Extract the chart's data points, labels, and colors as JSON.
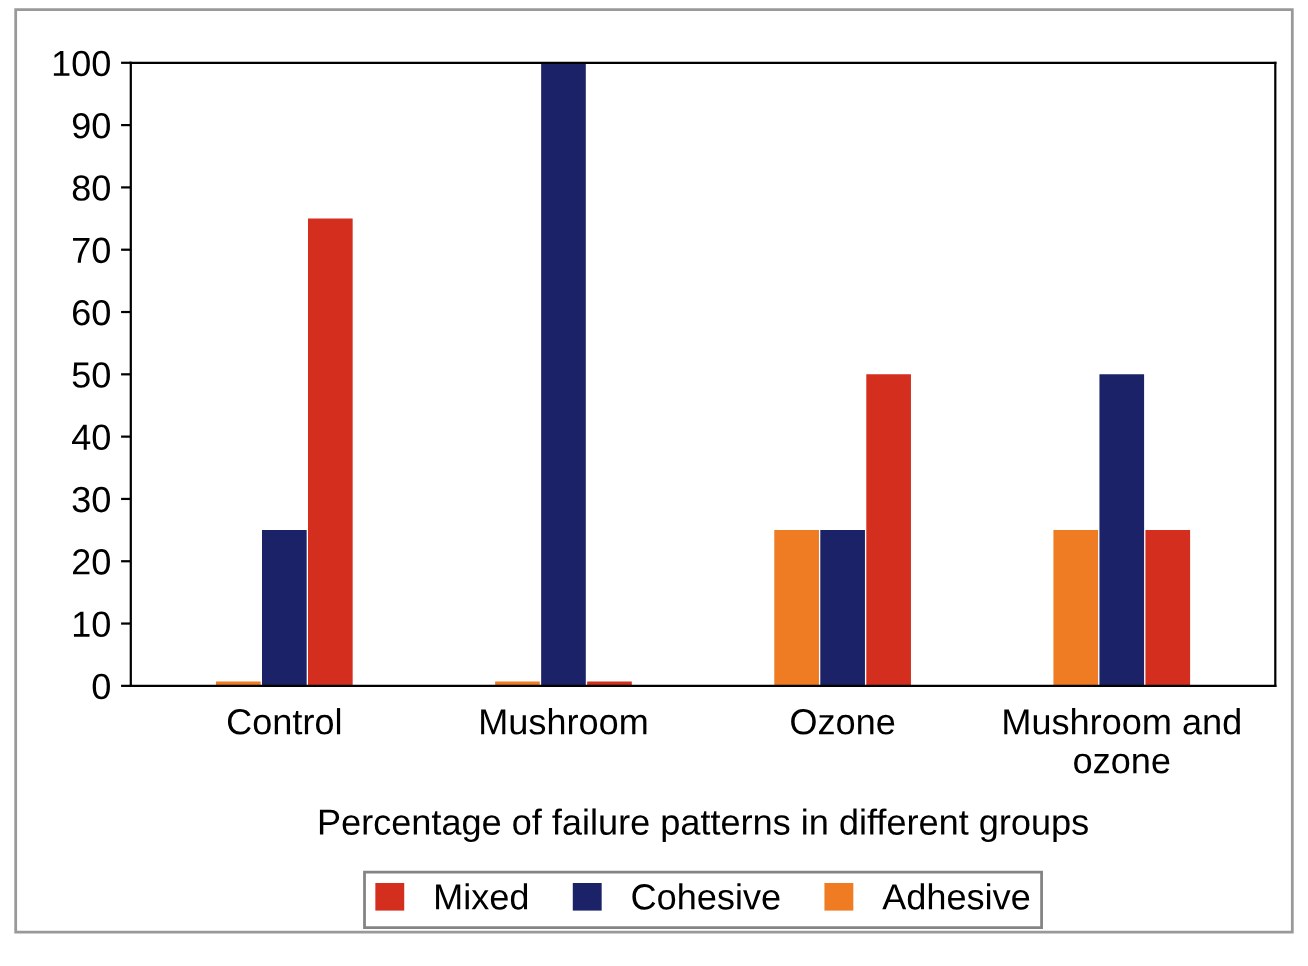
{
  "chart_data": {
    "type": "bar",
    "xlabel": "Percentage of failure patterns in different groups",
    "categories": [
      "Control",
      "Mushroom",
      "Ozone",
      "Mushroom and\nozone"
    ],
    "series": [
      {
        "name": "Adhesive",
        "color": "#ef7b22",
        "values": [
          0.7,
          0.7,
          25,
          25
        ]
      },
      {
        "name": "Cohesive",
        "color": "#1b2268",
        "values": [
          25,
          100,
          25,
          50
        ]
      },
      {
        "name": "Mixed",
        "color": "#d42e1f",
        "values": [
          75,
          0.7,
          50,
          25
        ]
      }
    ],
    "ylim": [
      0,
      100
    ],
    "yticks": [
      0,
      10,
      20,
      30,
      40,
      50,
      60,
      70,
      80,
      90,
      100
    ],
    "grid": false,
    "legend": "bottom"
  }
}
